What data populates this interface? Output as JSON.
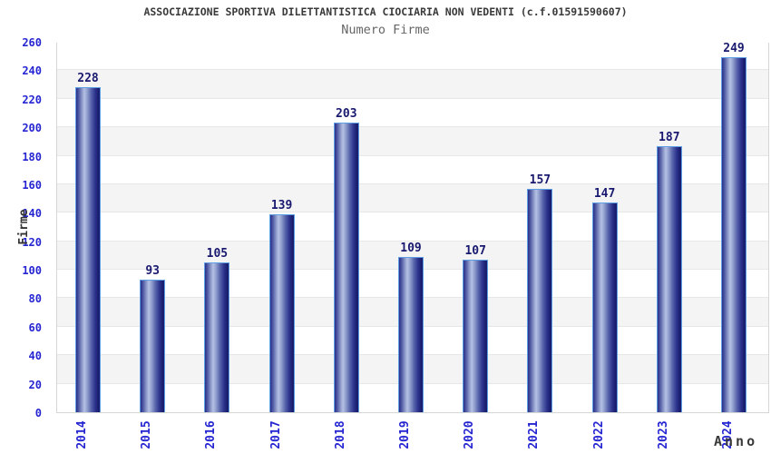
{
  "header": {
    "title": "ASSOCIAZIONE SPORTIVA DILETTANTISTICA CIOCIARIA NON VEDENTI (c.f.01591590607)",
    "subtitle": "Numero Firme"
  },
  "chart_data": {
    "type": "bar",
    "title": "ASSOCIAZIONE SPORTIVA DILETTANTISTICA CIOCIARIA NON VEDENTI (c.f.01591590607)",
    "subtitle": "Numero Firme",
    "categories": [
      "2014",
      "2015",
      "2016",
      "2017",
      "2018",
      "2019",
      "2020",
      "2021",
      "2022",
      "2023",
      "2024"
    ],
    "values": [
      228,
      93,
      105,
      139,
      203,
      109,
      107,
      157,
      147,
      187,
      249
    ],
    "xlabel": "Anno",
    "ylabel": "Firme",
    "ylim": [
      0,
      260
    ],
    "ytick_step": 20,
    "yticks": [
      0,
      20,
      40,
      60,
      80,
      100,
      120,
      140,
      160,
      180,
      200,
      220,
      240,
      260
    ],
    "grid": "horizontal-alternating-bands",
    "legend": "none",
    "colors": {
      "tick_label": "#2525d2",
      "category_label": "#2525d2",
      "value_label": "#191970",
      "title": "#3a3a3a",
      "subtitle": "#666666",
      "axis_title": "#333333",
      "band_white": "#ffffff",
      "band_gray": "#f4f4f4",
      "grid_line": "#e7e7e7",
      "plot_border": "#d6d6d6",
      "bar_dark": "#1b1f70",
      "bar_highlight": "#b5c0e4",
      "bar_border": "#5d9fe2"
    }
  }
}
